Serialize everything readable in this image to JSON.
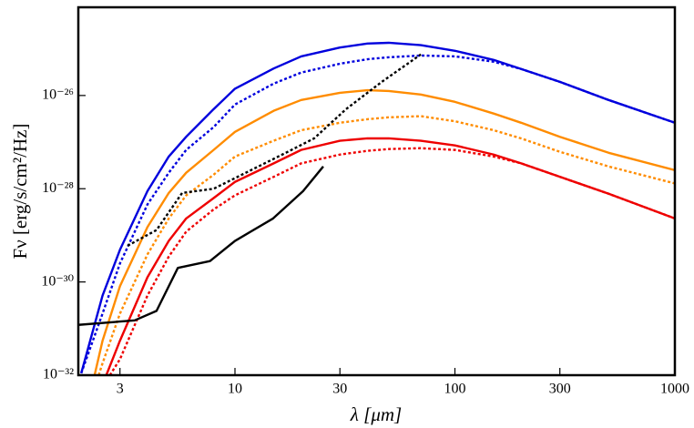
{
  "chart_data": {
    "type": "line",
    "x_label": "λ [μm]",
    "y_label": "Fν [erg/s/cm²/Hz]",
    "xscale": "log",
    "yscale": "log",
    "xlim": [
      1.94,
      1000
    ],
    "ylim": [
      1e-32,
      7.8e-25
    ],
    "xticks": [
      3,
      10,
      30,
      100,
      300,
      1000
    ],
    "yticks": [
      {
        "value": 1e-32,
        "label": "10⁻³²"
      },
      {
        "value": 1e-30,
        "label": "10⁻³⁰"
      },
      {
        "value": 1e-28,
        "label": "10⁻²⁸"
      },
      {
        "value": 1e-26,
        "label": "10⁻²⁶"
      }
    ],
    "series": [
      {
        "color": "#0000dd",
        "style": "solid",
        "x": [
          2,
          2.5,
          3,
          4,
          5,
          6,
          8,
          10,
          15,
          20,
          30,
          40,
          50,
          70,
          100,
          150,
          200,
          300,
          500,
          1000
        ],
        "values": [
          1.1e-32,
          5.1e-31,
          4.9e-30,
          8.9e-29,
          4.9e-28,
          1.3e-27,
          5.1e-27,
          1.4e-26,
          3.8e-26,
          6.9e-26,
          1.07e-25,
          1.3e-25,
          1.35e-25,
          1.2e-25,
          9.1e-26,
          5.8e-26,
          3.7e-26,
          1.96e-26,
          8e-27,
          2.6e-27
        ]
      },
      {
        "color": "#0000dd",
        "style": "dotted",
        "x": [
          2,
          2.5,
          3,
          4,
          5,
          6,
          8,
          10,
          15,
          20,
          30,
          40,
          50,
          70,
          100,
          150,
          200,
          300,
          500,
          1000
        ],
        "values": [
          1.1e-32,
          2.1e-31,
          2.5e-30,
          4.6e-29,
          2.2e-28,
          6.8e-28,
          2.1e-27,
          6.4e-27,
          1.8e-26,
          3.1e-26,
          4.8e-26,
          6e-26,
          6.6e-26,
          7.2e-26,
          6.9e-26,
          5.3e-26,
          3.7e-26,
          1.96e-26,
          8e-27,
          2.6e-27
        ]
      },
      {
        "color": "#ff8c00",
        "style": "solid",
        "x": [
          2.3,
          2.5,
          3,
          4,
          5,
          6,
          8,
          10,
          15,
          20,
          30,
          40,
          50,
          70,
          100,
          150,
          200,
          300,
          500,
          1000
        ],
        "values": [
          1e-32,
          5.5e-32,
          8.1e-31,
          1.5e-29,
          8.1e-29,
          2.2e-28,
          6.8e-28,
          1.66e-27,
          4.7e-27,
          8e-27,
          1.14e-26,
          1.3e-26,
          1.25e-26,
          1.05e-26,
          7.3e-27,
          4.1e-27,
          2.6e-27,
          1.3e-27,
          5.9e-28,
          2.5e-28
        ]
      },
      {
        "color": "#ff8c00",
        "style": "dotted",
        "x": [
          2.4,
          2.5,
          3,
          4,
          5,
          6,
          8,
          10,
          15,
          20,
          30,
          40,
          50,
          70,
          100,
          150,
          200,
          300,
          500,
          1000
        ],
        "values": [
          1e-32,
          1.8e-32,
          2.1e-31,
          3.9e-30,
          2.3e-29,
          7.2e-29,
          2e-28,
          4.9e-28,
          1.07e-27,
          1.8e-27,
          2.6e-27,
          3.1e-27,
          3.4e-27,
          3.6e-27,
          2.8e-27,
          1.8e-27,
          1.2e-27,
          6.2e-28,
          3e-28,
          1.3e-28
        ]
      },
      {
        "color": "#ee0000",
        "style": "solid",
        "x": [
          2.6,
          3,
          4,
          5,
          6,
          8,
          10,
          15,
          20,
          30,
          40,
          50,
          70,
          100,
          150,
          200,
          300,
          500,
          1000
        ],
        "values": [
          1e-32,
          5.5e-32,
          1.26e-30,
          7.6e-30,
          2.3e-29,
          6.3e-29,
          1.4e-28,
          3.5e-28,
          6.8e-28,
          1.07e-27,
          1.2e-27,
          1.2e-27,
          1.07e-27,
          8.5e-28,
          5.4e-28,
          3.5e-28,
          1.8e-28,
          7.8e-29,
          2.3e-29
        ]
      },
      {
        "color": "#ee0000",
        "style": "dotted",
        "x": [
          2.7,
          3,
          4,
          5,
          6,
          8,
          10,
          15,
          20,
          30,
          40,
          50,
          70,
          100,
          150,
          200,
          300,
          500,
          1000
        ],
        "values": [
          1e-32,
          2.2e-32,
          5.1e-31,
          3.5e-30,
          1.2e-29,
          3.6e-29,
          7.2e-29,
          1.8e-28,
          3.5e-28,
          5.4e-28,
          6.5e-28,
          7.1e-28,
          7.4e-28,
          6.8e-28,
          4.9e-28,
          3.5e-28,
          1.8e-28,
          7.8e-29,
          2.3e-29
        ]
      },
      {
        "color": "#000000",
        "style": "solid",
        "x": [
          1.94,
          3.5,
          4.4,
          5.5,
          7.7,
          10,
          14.9,
          20.4,
          25.2
        ],
        "values": [
          1.2e-31,
          1.5e-31,
          2.4e-31,
          2e-30,
          2.8e-30,
          7.6e-30,
          2.3e-29,
          8.9e-29,
          3e-28
        ]
      },
      {
        "color": "#000000",
        "style": "dotted",
        "x": [
          3.25,
          4.4,
          5.75,
          8,
          11.2,
          16.4,
          22.9,
          32,
          46.5,
          70
        ],
        "values": [
          6e-30,
          1.3e-29,
          8.1e-29,
          1e-28,
          2.2e-28,
          5.4e-28,
          1.2e-27,
          5.1e-27,
          1.96e-26,
          7.6e-26
        ]
      }
    ]
  }
}
